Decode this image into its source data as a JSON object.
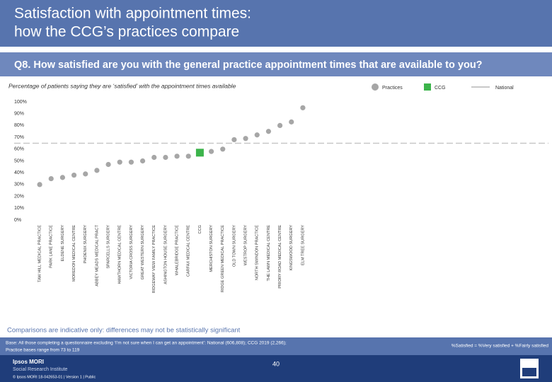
{
  "header": {
    "title_line1": "Satisfaction with appointment times:",
    "title_line2": "how the CCG’s practices compare"
  },
  "question": "Q8. How satisfied are you with the general practice appointment times that are available to you?",
  "chart_data": {
    "type": "scatter",
    "subtitle": "Percentage of patients saying they are ‘satisfied’ with the appointment times available",
    "categories": [
      "TAW HILL MEDICAL PRACTICE",
      "PARK LANE PRACTICE",
      "ELDENE SURGERY",
      "MOREDON MEDICAL CENTRE",
      "PHOENIX SURGERY",
      "ABBEY MEADS MEDICAL PRACT",
      "SPARCELLS SURGERY",
      "HAWTHORN MEDICAL CENTRE",
      "VICTORIA CROSS SURGERY",
      "GREAT WESTERN SURGERY",
      "RIDGEWAY VIEW FAMILY PRACTICE",
      "ASHINGTON HOUSE SURGERY",
      "WHALEBRIDGE PRACTICE",
      "CARFAX MEDICAL CENTRE",
      "CCG",
      "MERCHISTON SURGERY",
      "RIDGE GREEN MEDICAL PRACTICE",
      "OLD TOWN SURGERY",
      "WESTROP SURGERY",
      "NORTH SWINDON PRACTICE",
      "THE LAWN MEDICAL CENTRE",
      "PRIORY ROAD MEDICAL CENTRE",
      "KINGSWOOD SURGERY",
      "ELM TREE SURGERY"
    ],
    "series": [
      {
        "name": "Practices",
        "color": "#a6a6a6",
        "marker": "circle",
        "values": [
          30,
          35,
          36,
          38,
          39,
          42,
          47,
          49,
          49,
          50,
          53,
          53,
          54,
          54,
          null,
          58,
          60,
          68,
          69,
          72,
          75,
          80,
          83,
          95
        ]
      },
      {
        "name": "CCG",
        "color": "#3cb44b",
        "marker": "square",
        "values": [
          null,
          null,
          null,
          null,
          null,
          null,
          null,
          null,
          null,
          null,
          null,
          null,
          null,
          null,
          57,
          null,
          null,
          null,
          null,
          null,
          null,
          null,
          null,
          null
        ]
      }
    ],
    "reference_line": {
      "name": "National",
      "value": 65,
      "color": "#c8c8c8"
    },
    "ylim": [
      0,
      100
    ],
    "yticks": [
      {
        "value": 0,
        "label": "0%"
      },
      {
        "value": 10,
        "label": "10%"
      },
      {
        "value": 20,
        "label": "20%"
      },
      {
        "value": 30,
        "label": "30%"
      },
      {
        "value": 40,
        "label": "40%"
      },
      {
        "value": 50,
        "label": "50%"
      },
      {
        "value": 60,
        "label": "60%"
      },
      {
        "value": 70,
        "label": "70%"
      },
      {
        "value": 80,
        "label": "80%"
      },
      {
        "value": 90,
        "label": "90%"
      },
      {
        "value": 100,
        "label": "100%"
      }
    ],
    "note": "Comparisons are indicative only: differences may not be statistically significant"
  },
  "footer": {
    "base": "Base: All those completing a questionnaire excluding ‘I’m not sure when I can get an appointment’: National (606,808); CCG 2019 (2,266);",
    "base2": "Practice bases range from 73 to 119",
    "definition": "%Satisfied = %Very satisfied + %Fairly satisfied",
    "page": "40",
    "logo1": "Ipsos MORI",
    "logo2": "Social Research Institute",
    "copyright": "© Ipsos MORI     18-042653-01 | Version 1 | Public"
  }
}
